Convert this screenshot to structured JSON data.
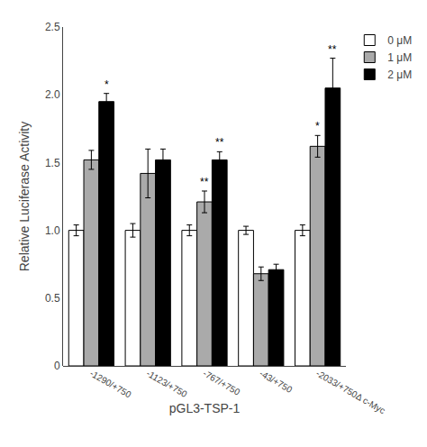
{
  "chart_data": {
    "type": "bar",
    "categories": [
      "-1290/+750",
      "-1123/+750",
      "-767/+750",
      "-43/+750",
      "-2033/+750Δ c-Myc"
    ],
    "series": [
      {
        "name": "0 μM",
        "color": "white",
        "values": [
          1.0,
          1.0,
          1.0,
          1.0,
          1.0
        ],
        "errors": [
          0.04,
          0.05,
          0.04,
          0.03,
          0.04
        ]
      },
      {
        "name": "1 μM",
        "color": "#aaaaaa",
        "values": [
          1.52,
          1.42,
          1.21,
          0.68,
          1.62
        ],
        "errors": [
          0.07,
          0.18,
          0.08,
          0.05,
          0.08
        ]
      },
      {
        "name": "2 μM",
        "color": "black",
        "values": [
          1.95,
          1.52,
          1.52,
          0.71,
          2.05
        ],
        "errors": [
          0.06,
          0.08,
          0.06,
          0.04,
          0.22
        ]
      }
    ],
    "xlabel": "pGL3-TSP-1",
    "ylabel": "Relative Luciferase Activity",
    "ylim": [
      0,
      2.5
    ],
    "yticks": [
      0,
      0.5,
      {
        "value": 1.0,
        "label": "1.0"
      },
      1.5,
      {
        "value": 2.0,
        "label": "2.0"
      },
      2.5
    ],
    "annotations": [
      {
        "category": "-1290/+750",
        "series": "2 μM",
        "text": "*"
      },
      {
        "category": "-767/+750",
        "series": "1 μM",
        "text": "**"
      },
      {
        "category": "-767/+750",
        "series": "2 μM",
        "text": "**"
      },
      {
        "category": "-2033/+750Δ c-Myc",
        "series": "1 μM",
        "text": "*"
      },
      {
        "category": "-2033/+750Δ c-Myc",
        "series": "2 μM",
        "text": "**"
      }
    ],
    "grid": false,
    "legend": "upper right"
  }
}
